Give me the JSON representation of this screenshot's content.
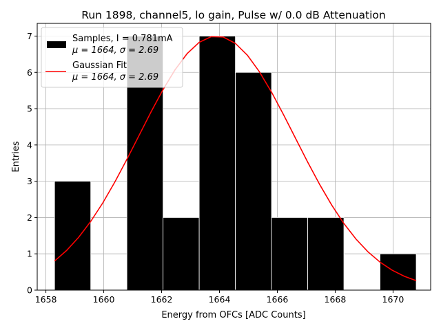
{
  "chart_data": {
    "type": "bar",
    "title": "Run 1898, channel5, lo gain, Pulse w/ 0.0 dB Attenuation",
    "xlabel": "Energy from OFCs [ADC Counts]",
    "ylabel": "Entries",
    "xlim": [
      1657.7,
      1671.3
    ],
    "ylim": [
      0,
      7.35
    ],
    "grid": true,
    "xticks": [
      1658,
      1660,
      1662,
      1664,
      1666,
      1668,
      1670
    ],
    "yticks": [
      0,
      1,
      2,
      3,
      4,
      5,
      6,
      7
    ],
    "histogram": {
      "name": "Samples",
      "color": "#000000",
      "bins": [
        {
          "x0": 1658.3,
          "x1": 1659.55,
          "count": 3
        },
        {
          "x0": 1660.8,
          "x1": 1662.05,
          "count": 7
        },
        {
          "x0": 1662.05,
          "x1": 1663.3,
          "count": 2
        },
        {
          "x0": 1663.3,
          "x1": 1664.55,
          "count": 7
        },
        {
          "x0": 1664.55,
          "x1": 1665.8,
          "count": 6
        },
        {
          "x0": 1665.8,
          "x1": 1667.05,
          "count": 2
        },
        {
          "x0": 1667.05,
          "x1": 1668.3,
          "count": 2
        },
        {
          "x0": 1669.55,
          "x1": 1670.8,
          "count": 1
        }
      ]
    },
    "fit": {
      "name": "Gaussian Fit",
      "color": "#ff0000",
      "mu": 1663.9,
      "sigma": 2.69,
      "amplitude": 7.0,
      "x_range": [
        1658.3,
        1670.8
      ]
    },
    "legend": {
      "position": "top-left",
      "entries": [
        {
          "line1": "Samples, I = 0.781mA",
          "mu_label": "μ = 1664, ",
          "sigma_label": "σ = 2.69"
        },
        {
          "line1": "Gaussian Fit",
          "mu_label": "μ = 1664, ",
          "sigma_label": "σ = 2.69"
        }
      ]
    }
  }
}
